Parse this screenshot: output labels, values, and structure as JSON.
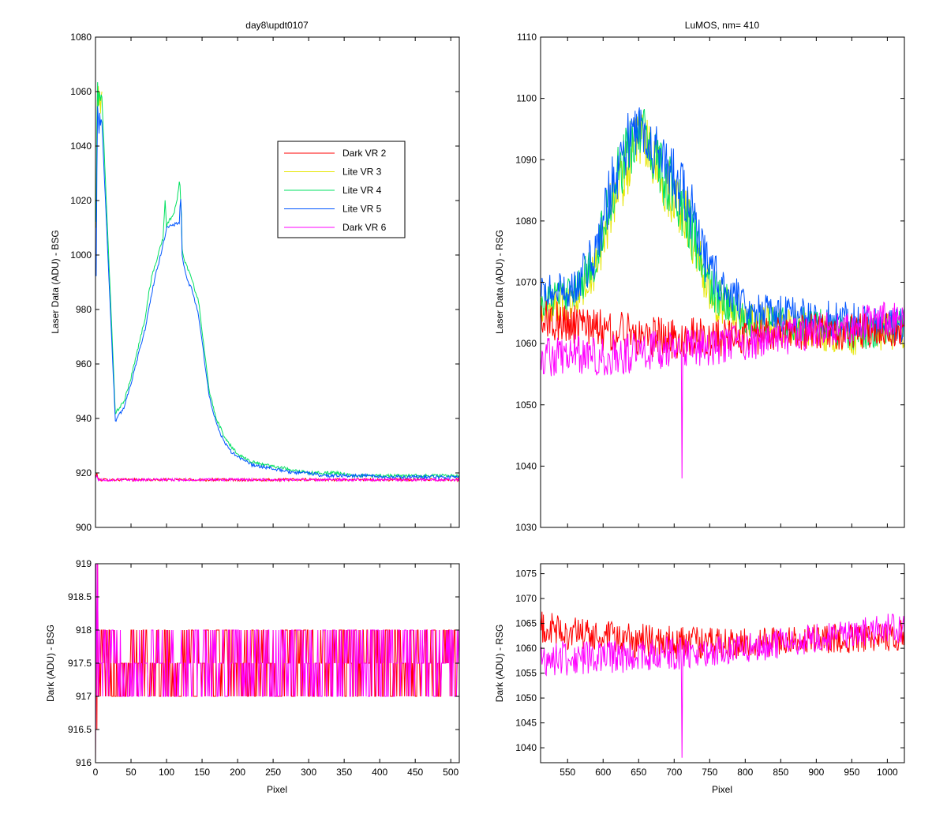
{
  "chart_data": [
    {
      "id": "top-left",
      "type": "line",
      "title": "day8\\updt0107",
      "xlabel": "",
      "ylabel": "Laser Data (ADU) - BSG",
      "xlim": [
        0,
        512
      ],
      "ylim": [
        900,
        1080
      ],
      "yticks": [
        900,
        920,
        940,
        960,
        980,
        1000,
        1020,
        1040,
        1060,
        1080
      ],
      "xticks": [
        0,
        50,
        100,
        150,
        200,
        250,
        300,
        350,
        400,
        450,
        500
      ],
      "show_xtick_labels": false,
      "legend": {
        "placement": "upper-center-right",
        "entries": [
          {
            "label": "Dark VR 2",
            "color": "#ff0000"
          },
          {
            "label": "Lite VR 3",
            "color": "#e6e600"
          },
          {
            "label": "Lite VR 4",
            "color": "#00e060"
          },
          {
            "label": "Lite VR 5",
            "color": "#0055ff"
          },
          {
            "label": "Dark VR 6",
            "color": "#ff00ff"
          }
        ]
      },
      "series": [
        {
          "name": "Dark VR 2",
          "color": "#ff0000",
          "noisy": true,
          "x": [
            0,
            2,
            4,
            512
          ],
          "y": [
            918,
            920,
            917.5,
            917.5
          ],
          "noise": [
            0,
            0,
            0.5,
            0.5
          ]
        },
        {
          "name": "Dark VR 6",
          "color": "#ff00ff",
          "noisy": true,
          "x": [
            0,
            2,
            4,
            512
          ],
          "y": [
            918,
            919,
            917.5,
            917.5
          ],
          "noise": [
            0,
            0,
            0.5,
            0.5
          ]
        },
        {
          "name": "Lite VR 3",
          "color": "#e6e600",
          "x": [
            1,
            2,
            3,
            4,
            5,
            6,
            7,
            8,
            9
          ],
          "y": [
            1010,
            1045,
            1058,
            1062,
            1055,
            1060,
            1052,
            1058,
            1060
          ]
        },
        {
          "name": "Lite VR 4",
          "color": "#00e060",
          "x": [
            1,
            2,
            3,
            4,
            5,
            6,
            7,
            8,
            9,
            28,
            40,
            50,
            60,
            70,
            75,
            80,
            85,
            90,
            95,
            98,
            100,
            102,
            110,
            115,
            118,
            119,
            120,
            121,
            122,
            125,
            130,
            135,
            140,
            145,
            150,
            160,
            170,
            180,
            190,
            200,
            220,
            240,
            260,
            280,
            300,
            320,
            340,
            360,
            380,
            400,
            450,
            512
          ],
          "y": [
            1012,
            1048,
            1063,
            1055,
            1060,
            1058,
            1057,
            1059,
            1058,
            942,
            946,
            955,
            966,
            977,
            986,
            993,
            997,
            1002,
            1006,
            1020,
            1010,
            1012,
            1015,
            1020,
            1027,
            1026,
            1020,
            1015,
            1002,
            998,
            995,
            992,
            987,
            983,
            972,
            950,
            940,
            934,
            930,
            927,
            924,
            923,
            922,
            921,
            920,
            920,
            920,
            919,
            919,
            919,
            919,
            919
          ]
        },
        {
          "name": "Lite VR 5",
          "color": "#0055ff",
          "x": [
            1,
            2,
            3,
            4,
            5,
            6,
            7,
            8,
            9,
            28,
            40,
            50,
            60,
            70,
            75,
            80,
            85,
            90,
            95,
            98,
            100,
            118,
            119,
            120,
            121,
            122,
            125,
            130,
            135,
            140,
            145,
            150,
            160,
            170,
            180,
            190,
            200,
            220,
            240,
            260,
            280,
            300,
            320,
            340,
            360,
            380,
            400,
            450,
            512
          ],
          "y": [
            992,
            1030,
            1055,
            1050,
            1045,
            1052,
            1048,
            1050,
            1049,
            939,
            944,
            953,
            963,
            973,
            980,
            987,
            993,
            998,
            1004,
            1007,
            1010,
            1012,
            1018,
            1020,
            1012,
            1000,
            995,
            990,
            988,
            983,
            978,
            968,
            948,
            938,
            932,
            928,
            926,
            923,
            922,
            921,
            920,
            920,
            919,
            919,
            919,
            919,
            918.5,
            918.5,
            918.5
          ]
        }
      ]
    },
    {
      "id": "bottom-left",
      "type": "line",
      "xlabel": "Pixel",
      "ylabel": "Dark (ADU) - BSG",
      "xlim": [
        0,
        512
      ],
      "ylim": [
        916,
        919
      ],
      "yticks": [
        916,
        916.5,
        917,
        917.5,
        918,
        918.5,
        919
      ],
      "ytick_labels": [
        "916",
        "916.5",
        "917",
        "917.5",
        "918",
        "918.5",
        "919"
      ],
      "xticks": [
        0,
        50,
        100,
        150,
        200,
        250,
        300,
        350,
        400,
        450,
        500
      ],
      "series": [
        {
          "name": "Dark VR 2",
          "color": "#ff0000",
          "digitized": true,
          "levels": [
            917,
            917.5,
            918
          ],
          "x_start": 4,
          "x_end": 512,
          "spike_x": [
            0,
            1,
            2,
            3
          ],
          "spike_y": [
            916,
            919,
            916.5,
            919
          ]
        },
        {
          "name": "Dark VR 6",
          "color": "#ff00ff",
          "digitized": true,
          "levels": [
            917,
            917.5,
            918
          ],
          "x_start": 4,
          "x_end": 512,
          "spike_x": [
            0,
            1,
            2,
            3,
            4
          ],
          "spike_y": [
            916,
            919,
            917,
            919,
            917
          ]
        }
      ]
    },
    {
      "id": "top-right",
      "type": "line",
      "title": "LuMOS, nm= 410",
      "xlabel": "",
      "ylabel": "Laser Data (ADU) - RSG",
      "xlim": [
        512,
        1024
      ],
      "ylim": [
        1030,
        1110
      ],
      "yticks": [
        1030,
        1040,
        1050,
        1060,
        1070,
        1080,
        1090,
        1100,
        1110
      ],
      "xticks": [
        550,
        600,
        650,
        700,
        750,
        800,
        850,
        900,
        950,
        1000
      ],
      "show_xtick_labels": false,
      "series": [
        {
          "name": "Lite VR 3",
          "color": "#e6e600",
          "noisy": true,
          "x": [
            512,
            560,
            590,
            610,
            630,
            650,
            665,
            680,
            700,
            720,
            750,
            800,
            850,
            900,
            950,
            1000,
            1024
          ],
          "y": [
            1066,
            1067,
            1072,
            1082,
            1088,
            1093,
            1092,
            1087,
            1084,
            1080,
            1068,
            1064,
            1063,
            1062,
            1061,
            1062,
            1062
          ],
          "noise": [
            3,
            3,
            4,
            5,
            5,
            5,
            5,
            5,
            5,
            5,
            4,
            3,
            3,
            3,
            3,
            3,
            3
          ]
        },
        {
          "name": "Lite VR 4",
          "color": "#00e060",
          "noisy": true,
          "x": [
            512,
            560,
            590,
            610,
            630,
            650,
            665,
            680,
            700,
            720,
            750,
            800,
            850,
            900,
            950,
            1000,
            1024
          ],
          "y": [
            1067,
            1068,
            1074,
            1084,
            1090,
            1094,
            1093,
            1088,
            1085,
            1080,
            1069,
            1064,
            1063,
            1063,
            1062,
            1062,
            1063
          ],
          "noise": [
            3,
            3,
            4,
            5,
            5,
            5,
            5,
            5,
            5,
            5,
            4,
            3,
            3,
            3,
            3,
            3,
            3
          ]
        },
        {
          "name": "Lite VR 5",
          "color": "#0055ff",
          "noisy": true,
          "x": [
            512,
            560,
            590,
            610,
            630,
            650,
            665,
            680,
            700,
            720,
            750,
            800,
            850,
            900,
            950,
            1000,
            1024
          ],
          "y": [
            1068,
            1069,
            1075,
            1085,
            1092,
            1095,
            1094,
            1090,
            1087,
            1083,
            1072,
            1066,
            1065,
            1064,
            1064,
            1063,
            1063
          ],
          "noise": [
            3,
            3,
            4,
            5,
            5,
            5,
            5,
            5,
            5,
            5,
            4,
            3,
            3,
            3,
            3,
            3,
            3
          ]
        },
        {
          "name": "Dark VR 2",
          "color": "#ff0000",
          "noisy": true,
          "x": [
            512,
            600,
            700,
            800,
            900,
            1000,
            1024
          ],
          "y": [
            1064,
            1062,
            1061,
            1061,
            1062,
            1062,
            1063
          ],
          "noise": [
            3.5,
            3.5,
            3.5,
            3,
            3,
            3,
            3
          ]
        },
        {
          "name": "Dark VR 6",
          "color": "#ff00ff",
          "noisy": true,
          "x": [
            512,
            600,
            700,
            800,
            900,
            1000,
            1024
          ],
          "y": [
            1058,
            1058,
            1059,
            1060,
            1062,
            1064,
            1064
          ],
          "noise": [
            3.5,
            3.5,
            3.5,
            3,
            3,
            3,
            3
          ],
          "dip": {
            "x": 711,
            "y": 1038
          }
        }
      ]
    },
    {
      "id": "bottom-right",
      "type": "line",
      "xlabel": "Pixel",
      "ylabel": "Dark (ADU) - RSG",
      "xlim": [
        512,
        1024
      ],
      "ylim": [
        1037,
        1077
      ],
      "yticks": [
        1040,
        1045,
        1050,
        1055,
        1060,
        1065,
        1070,
        1075
      ],
      "xticks": [
        550,
        600,
        650,
        700,
        750,
        800,
        850,
        900,
        950,
        1000
      ],
      "series": [
        {
          "name": "Dark VR 2",
          "color": "#ff0000",
          "noisy": true,
          "x": [
            512,
            600,
            700,
            800,
            900,
            1000,
            1024
          ],
          "y": [
            1064,
            1062,
            1061,
            1061,
            1062,
            1062,
            1063
          ],
          "noise": [
            3.5,
            3.5,
            3.5,
            3,
            3,
            3,
            3
          ]
        },
        {
          "name": "Dark VR 6",
          "color": "#ff00ff",
          "noisy": true,
          "x": [
            512,
            600,
            700,
            800,
            900,
            1000,
            1024
          ],
          "y": [
            1058,
            1058,
            1059,
            1060,
            1062,
            1064,
            1064
          ],
          "noise": [
            3.5,
            3.5,
            3.5,
            3,
            3,
            3,
            3
          ],
          "dip": {
            "x": 711,
            "y": 1038
          }
        }
      ]
    }
  ]
}
